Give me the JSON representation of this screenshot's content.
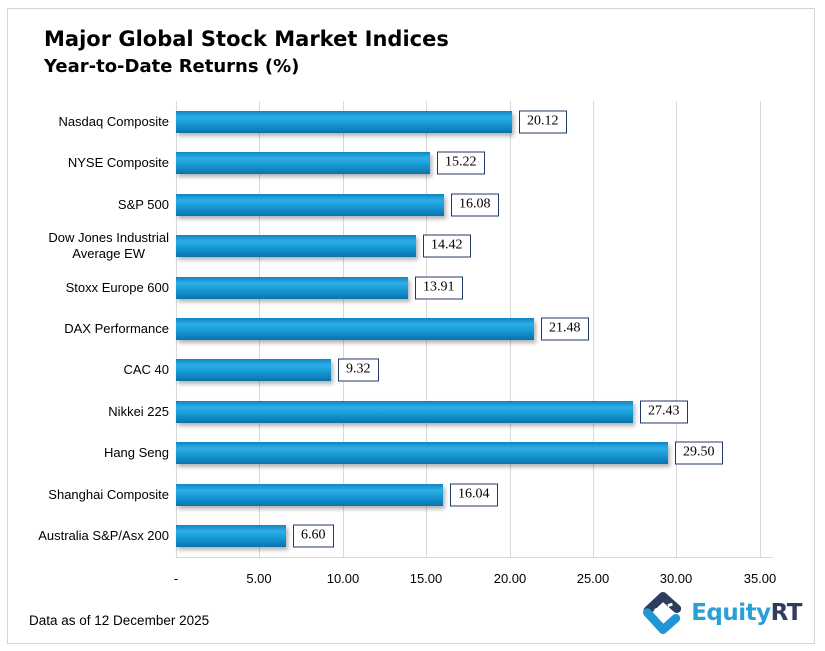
{
  "header": {
    "title": "Major Global Stock Market Indices",
    "subtitle": "Year-to-Date Returns (%)"
  },
  "chart_data": {
    "type": "bar",
    "orientation": "horizontal",
    "title": "Major Global Stock Market Indices",
    "subtitle": "Year-to-Date Returns (%)",
    "categories": [
      "Nasdaq Composite",
      "NYSE Composite",
      "S&P 500",
      "Dow Jones Industrial\nAverage EW",
      "Stoxx Europe 600",
      "DAX Performance",
      "CAC 40",
      "Nikkei 225",
      "Hang Seng",
      "Shanghai Composite",
      "Australia S&P/Asx 200"
    ],
    "values": [
      20.12,
      15.22,
      16.08,
      14.42,
      13.91,
      21.48,
      9.32,
      27.43,
      29.5,
      16.04,
      6.6
    ],
    "value_labels": [
      "20.12",
      "15.22",
      "16.08",
      "14.42",
      "13.91",
      "21.48",
      "9.32",
      "27.43",
      "29.50",
      "16.04",
      "6.60"
    ],
    "xlabel": "",
    "ylabel": "",
    "xlim": [
      0,
      35.8
    ],
    "axis_ticks": [
      0,
      5,
      10,
      15,
      20,
      25,
      30,
      35
    ],
    "axis_tick_labels": [
      "-",
      "5.00",
      "10.00",
      "15.00",
      "20.00",
      "25.00",
      "30.00",
      "35.00"
    ],
    "grid": "vertical",
    "legend": "none",
    "colors": {
      "bar_top": "#0f86c1",
      "bar_bright": "#2fade6",
      "bar_bottom": "#0b73a8",
      "gridline": "#d9d9d9",
      "value_box_border": "#1f3864",
      "value_box_bg": "#ffffff"
    }
  },
  "footer": {
    "note": "Data as of 12 December 2025",
    "logo": {
      "text_primary": "Equity",
      "text_secondary": "RT",
      "color_primary": "#2aa0d8",
      "color_secondary": "#2e3d5c"
    }
  }
}
